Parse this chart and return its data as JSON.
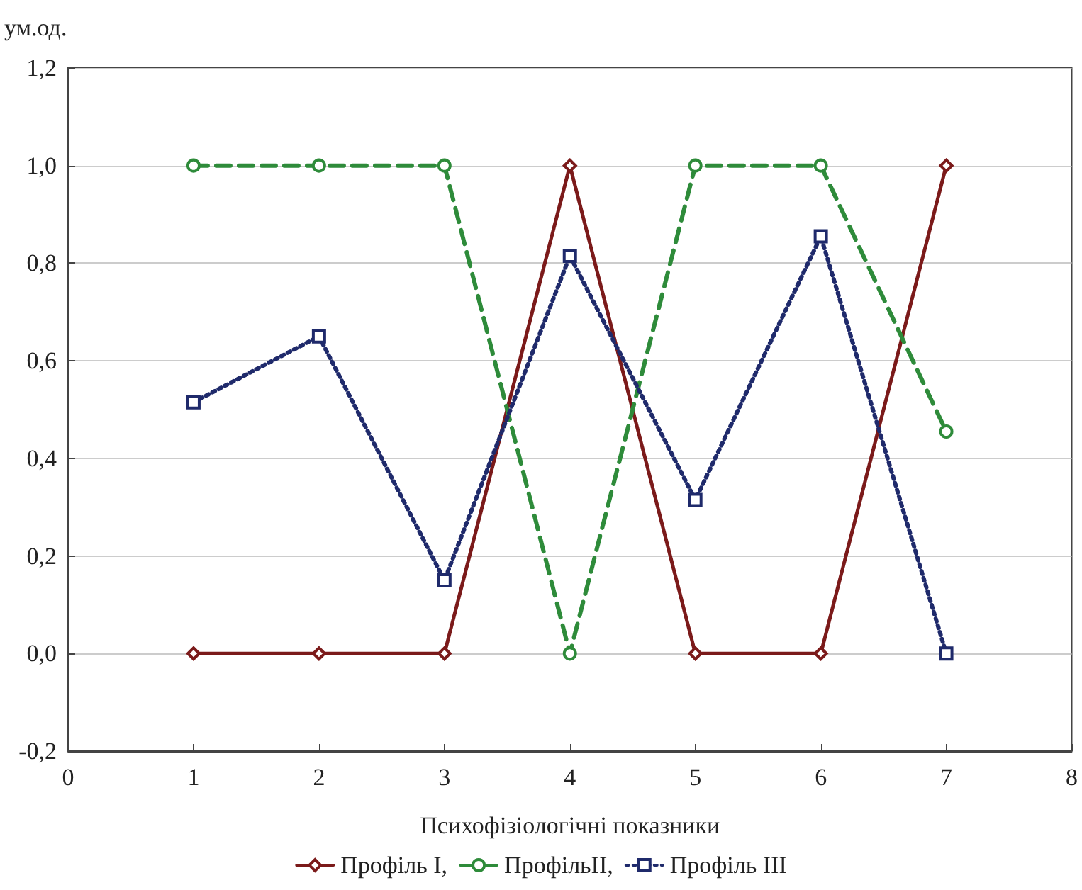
{
  "chart_data": {
    "type": "line",
    "xlabel": "Психофізіологічні показники",
    "ylabel": "ум.од.",
    "x": [
      1,
      2,
      3,
      4,
      5,
      6,
      7
    ],
    "series": [
      {
        "name": "Профіль I,",
        "color": "#7b1a1a",
        "marker": "diamond",
        "line_style": "solid",
        "values": [
          0,
          0,
          0,
          1,
          0,
          0,
          1
        ]
      },
      {
        "name": "ПрофільII,",
        "color": "#2e8b3a",
        "marker": "circle",
        "line_style": "dashed",
        "values": [
          1,
          1,
          1,
          0,
          1,
          1,
          0.455
        ]
      },
      {
        "name": "Профіль III",
        "color": "#1f2a6b",
        "marker": "square",
        "line_style": "dotted",
        "values": [
          0.515,
          0.65,
          0.15,
          0.815,
          0.315,
          0.855,
          0
        ]
      }
    ],
    "xlim": [
      0,
      8
    ],
    "xticks": [
      0,
      1,
      2,
      3,
      4,
      5,
      6,
      7,
      8
    ],
    "ylim": [
      -0.2,
      1.2
    ],
    "yticks": [
      {
        "value": -0.2,
        "label": "-0,2"
      },
      {
        "value": 0,
        "label": "0,0"
      },
      {
        "value": 0.2,
        "label": "0,2"
      },
      {
        "value": 0.4,
        "label": "0,4"
      },
      {
        "value": 0.6,
        "label": "0,6"
      },
      {
        "value": 0.8,
        "label": "0,8"
      },
      {
        "value": 1,
        "label": "1,0"
      },
      {
        "value": 1.2,
        "label": "1,2"
      }
    ],
    "grid": "y",
    "legend": "bottom"
  }
}
